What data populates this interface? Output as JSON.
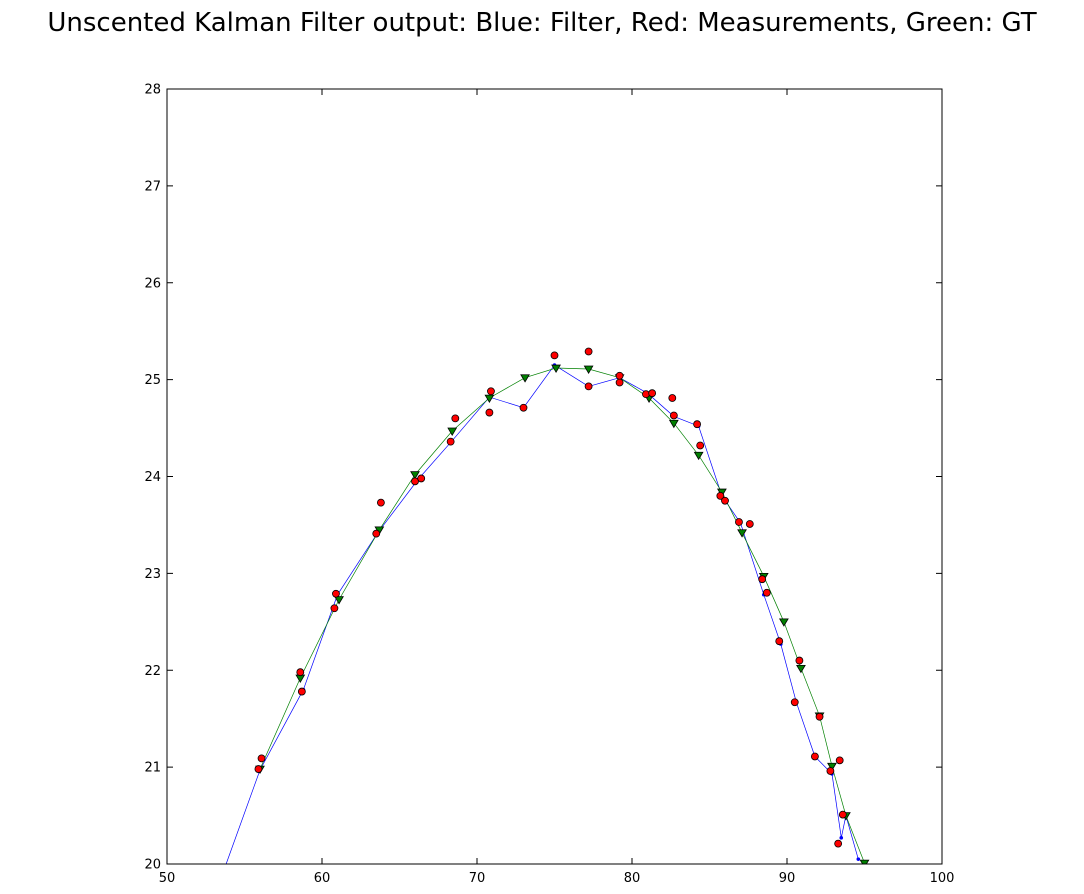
{
  "chart_data": {
    "type": "line",
    "title": "Unscented Kalman Filter output: Blue: Filter, Red: Measurements, Green: GT",
    "xlabel": "",
    "ylabel": "",
    "xlim": [
      50,
      100
    ],
    "ylim": [
      20,
      28
    ],
    "xticks": [
      "50",
      "60",
      "70",
      "80",
      "90",
      "100"
    ],
    "yticks": [
      "20",
      "21",
      "22",
      "23",
      "24",
      "25",
      "26",
      "27",
      "28"
    ],
    "grid": false,
    "series": [
      {
        "color": "#0000ff",
        "marker": "dot",
        "x": [
          53.7,
          56.0,
          58.8,
          61.0,
          63.6,
          66.2,
          68.4,
          70.8,
          73.0,
          75.0,
          77.2,
          79.2,
          81.0,
          82.7,
          84.3,
          85.8,
          87.0,
          88.5,
          89.6,
          90.6,
          91.8,
          92.9,
          93.5,
          93.8,
          94.6
        ],
        "y": [
          19.95,
          20.97,
          21.8,
          22.78,
          23.42,
          23.97,
          24.37,
          24.82,
          24.71,
          25.15,
          24.93,
          25.02,
          24.86,
          24.62,
          24.52,
          23.8,
          23.52,
          22.78,
          22.27,
          21.67,
          21.11,
          20.93,
          20.27,
          20.5,
          20.05
        ]
      },
      {
        "color": "#ff0000",
        "marker": "circle",
        "x": [
          55.9,
          56.1,
          58.6,
          58.7,
          60.8,
          60.9,
          63.5,
          63.8,
          66.0,
          66.4,
          68.3,
          68.6,
          70.8,
          70.9,
          73.0,
          75.0,
          77.2,
          77.2,
          79.2,
          79.2,
          80.9,
          81.3,
          82.6,
          82.7,
          84.2,
          84.4,
          85.7,
          86.0,
          86.9,
          87.6,
          88.4,
          88.7,
          89.5,
          90.5,
          90.8,
          91.8,
          92.1,
          92.8,
          93.3,
          93.4,
          93.6
        ],
        "y": [
          20.98,
          21.09,
          21.98,
          21.78,
          22.64,
          22.79,
          23.41,
          23.73,
          23.95,
          23.98,
          24.36,
          24.6,
          24.66,
          24.88,
          24.71,
          25.25,
          24.93,
          25.29,
          24.97,
          25.04,
          24.85,
          24.86,
          24.81,
          24.63,
          24.54,
          24.32,
          23.8,
          23.75,
          23.53,
          23.51,
          22.94,
          22.8,
          22.3,
          21.67,
          22.1,
          21.11,
          21.52,
          20.96,
          20.21,
          21.07,
          20.51
        ]
      },
      {
        "color": "#008000",
        "marker": "triangle-down",
        "x": [
          56.0,
          58.6,
          61.1,
          63.7,
          66.0,
          68.4,
          70.8,
          73.1,
          75.1,
          77.2,
          79.2,
          81.1,
          82.7,
          84.3,
          85.8,
          87.1,
          88.5,
          89.8,
          90.9,
          92.1,
          92.9,
          93.8,
          95.0
        ],
        "y": [
          20.98,
          21.92,
          22.73,
          23.45,
          24.02,
          24.47,
          24.81,
          25.02,
          25.12,
          25.11,
          25.02,
          24.81,
          24.55,
          24.22,
          23.84,
          23.42,
          22.97,
          22.5,
          22.02,
          21.53,
          21.01,
          20.5,
          20.01
        ]
      }
    ]
  }
}
